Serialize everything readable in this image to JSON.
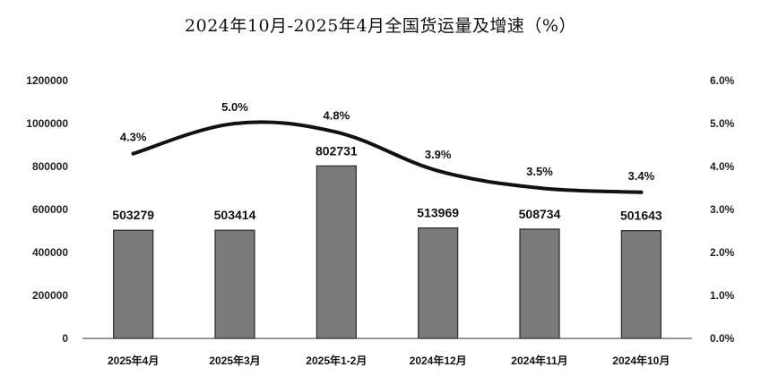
{
  "chart_data": {
    "type": "bar",
    "title": "2024年10月-2025年4月全国货运量及增速（%）",
    "categories": [
      "2025年4月",
      "2025年3月",
      "2025年1-2月",
      "2024年12月",
      "2024年11月",
      "2024年10月"
    ],
    "series": [
      {
        "type": "bar",
        "axis": "left",
        "values": [
          503279,
          503414,
          802731,
          513969,
          508734,
          501643
        ],
        "labels": [
          "503279",
          "503414",
          "802731",
          "513969",
          "508734",
          "501643"
        ]
      },
      {
        "type": "line",
        "axis": "right",
        "values": [
          4.3,
          5.0,
          4.8,
          3.9,
          3.5,
          3.4
        ],
        "labels": [
          "4.3%",
          "5.0%",
          "4.8%",
          "3.9%",
          "3.5%",
          "3.4%"
        ]
      }
    ],
    "y_left": {
      "min": 0,
      "max": 1200000,
      "ticks": [
        "0",
        "200000",
        "400000",
        "600000",
        "800000",
        "1000000",
        "1200000"
      ]
    },
    "y_right": {
      "min": 0,
      "max": 6,
      "ticks": [
        "0.0%",
        "1.0%",
        "2.0%",
        "3.0%",
        "4.0%",
        "5.0%",
        "6.0%"
      ]
    },
    "grid": false,
    "colors": {
      "bar": "#7a7a7a",
      "bar_edge": "#2a2a2a",
      "line": "#111111"
    }
  }
}
